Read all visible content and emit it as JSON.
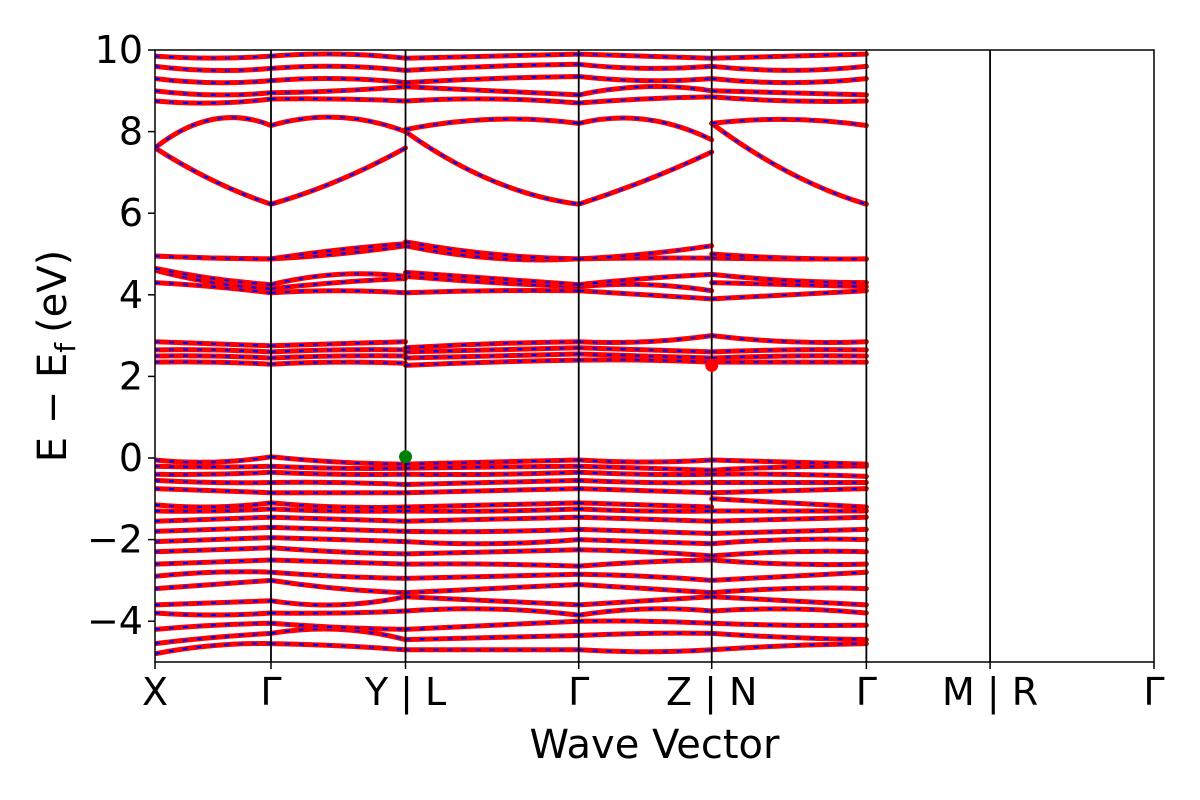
{
  "chart_data": {
    "type": "line",
    "xlabel": "Wave Vector",
    "ylabel": {
      "main": "E − E",
      "sub": "f",
      "unit": "(eV)"
    },
    "ylim": [
      -5,
      10
    ],
    "yticks": [
      -4,
      -2,
      0,
      2,
      4,
      6,
      8,
      10
    ],
    "ytick_labels": [
      "−4",
      "−2",
      "0",
      "2",
      "4",
      "6",
      "8",
      "10"
    ],
    "kpath": {
      "positions": [
        0,
        0.75,
        1.62,
        2.74,
        3.6,
        4.6,
        5.4,
        6.46
      ],
      "labels": [
        "X",
        "Γ",
        "Y | L",
        "Γ",
        "Z | N",
        "Γ",
        "M | R",
        "Γ"
      ],
      "xlim": [
        0,
        6.46
      ]
    },
    "line_colors": [
      "#ff0000",
      "#0000ff"
    ],
    "grid": false,
    "legend": "none",
    "markers": [
      {
        "name": "VBM",
        "x": 1.62,
        "y": 0.03,
        "color": "#008000"
      },
      {
        "name": "CBM",
        "x": 3.6,
        "y": 2.27,
        "color": "#ff0000"
      }
    ],
    "bands": [
      {
        "segments": [
          [
            -4.8,
            -4.6,
            -4.55
          ],
          [
            -4.55,
            -4.6,
            -4.7
          ],
          [
            -4.7,
            -4.7,
            -4.7
          ],
          [
            -4.7,
            -4.75,
            -4.7
          ],
          [
            -4.7,
            -4.6,
            -4.55
          ]
        ]
      },
      {
        "segments": [
          [
            -4.55,
            -4.4,
            -4.3
          ],
          [
            -4.3,
            -4.2,
            -4.45
          ],
          [
            -4.45,
            -4.4,
            -4.35
          ],
          [
            -4.35,
            -4.3,
            -4.3
          ],
          [
            -4.3,
            -4.4,
            -4.45
          ]
        ]
      },
      {
        "segments": [
          [
            -4.2,
            -4.1,
            -4.05
          ],
          [
            -4.05,
            -4.15,
            -4.2
          ],
          [
            -4.2,
            -4.1,
            -4.0
          ],
          [
            -4.0,
            -4.0,
            -4.05
          ],
          [
            -4.05,
            -4.1,
            -4.1
          ]
        ]
      },
      {
        "segments": [
          [
            -3.8,
            -3.85,
            -3.8
          ],
          [
            -3.8,
            -3.8,
            -3.75
          ],
          [
            -3.75,
            -3.7,
            -3.85
          ],
          [
            -3.85,
            -3.7,
            -3.75
          ],
          [
            -3.75,
            -3.7,
            -3.8
          ]
        ]
      },
      {
        "segments": [
          [
            -3.6,
            -3.55,
            -3.5
          ],
          [
            -3.5,
            -3.6,
            -3.4
          ],
          [
            -3.4,
            -3.5,
            -3.6
          ],
          [
            -3.6,
            -3.5,
            -3.4
          ],
          [
            -3.4,
            -3.5,
            -3.6
          ]
        ]
      },
      {
        "segments": [
          [
            -3.2,
            -3.1,
            -3.0
          ],
          [
            -3.0,
            -3.2,
            -3.3
          ],
          [
            -3.3,
            -3.2,
            -3.1
          ],
          [
            -3.1,
            -3.2,
            -3.3
          ],
          [
            -3.3,
            -3.2,
            -3.2
          ]
        ]
      },
      {
        "segments": [
          [
            -2.9,
            -2.8,
            -2.8
          ],
          [
            -2.8,
            -2.9,
            -2.95
          ],
          [
            -2.95,
            -2.9,
            -2.85
          ],
          [
            -2.85,
            -2.9,
            -3.0
          ],
          [
            -3.0,
            -2.9,
            -2.8
          ]
        ]
      },
      {
        "segments": [
          [
            -2.6,
            -2.55,
            -2.5
          ],
          [
            -2.5,
            -2.55,
            -2.6
          ],
          [
            -2.6,
            -2.6,
            -2.65
          ],
          [
            -2.65,
            -2.55,
            -2.5
          ],
          [
            -2.5,
            -2.6,
            -2.6
          ]
        ]
      },
      {
        "segments": [
          [
            -2.3,
            -2.25,
            -2.2
          ],
          [
            -2.2,
            -2.3,
            -2.35
          ],
          [
            -2.35,
            -2.3,
            -2.25
          ],
          [
            -2.25,
            -2.3,
            -2.4
          ],
          [
            -2.4,
            -2.3,
            -2.3
          ]
        ]
      },
      {
        "segments": [
          [
            -2.05,
            -2.0,
            -1.95
          ],
          [
            -1.95,
            -2.0,
            -2.05
          ],
          [
            -2.05,
            -2.1,
            -2.0
          ],
          [
            -2.0,
            -2.05,
            -2.1
          ],
          [
            -2.1,
            -2.0,
            -2.0
          ]
        ]
      },
      {
        "segments": [
          [
            -1.8,
            -1.75,
            -1.7
          ],
          [
            -1.7,
            -1.75,
            -1.8
          ],
          [
            -1.8,
            -1.8,
            -1.75
          ],
          [
            -1.75,
            -1.8,
            -1.85
          ],
          [
            -1.85,
            -1.8,
            -1.75
          ]
        ]
      },
      {
        "segments": [
          [
            -1.55,
            -1.5,
            -1.45
          ],
          [
            -1.45,
            -1.5,
            -1.55
          ],
          [
            -1.55,
            -1.5,
            -1.45
          ],
          [
            -1.45,
            -1.5,
            -1.55
          ],
          [
            -1.55,
            -1.5,
            -1.45
          ]
        ]
      },
      {
        "segments": [
          [
            -1.3,
            -1.3,
            -1.25
          ],
          [
            -1.25,
            -1.3,
            -1.3
          ],
          [
            -1.3,
            -1.3,
            -1.25
          ],
          [
            -1.25,
            -1.3,
            -1.3
          ],
          [
            -1.3,
            -1.3,
            -1.3
          ]
        ]
      },
      {
        "segments": [
          [
            -1.15,
            -1.2,
            -1.1
          ],
          [
            -1.1,
            -1.2,
            -1.2
          ],
          [
            -1.2,
            -1.15,
            -1.1
          ],
          [
            -1.1,
            -1.15,
            -1.2
          ],
          [
            -1.0,
            -1.1,
            -1.2
          ]
        ]
      },
      {
        "segments": [
          [
            -0.75,
            -0.8,
            -0.85
          ],
          [
            -0.85,
            -0.85,
            -0.85
          ],
          [
            -0.85,
            -0.8,
            -0.75
          ],
          [
            -0.75,
            -0.8,
            -0.85
          ],
          [
            -0.85,
            -0.8,
            -0.75
          ]
        ]
      },
      {
        "segments": [
          [
            -0.55,
            -0.6,
            -0.6
          ],
          [
            -0.6,
            -0.6,
            -0.65
          ],
          [
            -0.65,
            -0.6,
            -0.55
          ],
          [
            -0.55,
            -0.6,
            -0.6
          ],
          [
            -0.6,
            -0.6,
            -0.6
          ]
        ]
      },
      {
        "segments": [
          [
            -0.4,
            -0.4,
            -0.35
          ],
          [
            -0.35,
            -0.4,
            -0.4
          ],
          [
            -0.4,
            -0.4,
            -0.35
          ],
          [
            -0.35,
            -0.4,
            -0.4
          ],
          [
            -0.4,
            -0.4,
            -0.45
          ]
        ]
      },
      {
        "segments": [
          [
            -0.2,
            -0.22,
            -0.2
          ],
          [
            -0.2,
            -0.25,
            -0.25
          ],
          [
            -0.25,
            -0.22,
            -0.2
          ],
          [
            -0.2,
            -0.25,
            -0.3
          ],
          [
            -0.3,
            -0.22,
            -0.2
          ]
        ]
      },
      {
        "segments": [
          [
            -0.05,
            -0.1,
            0.03
          ],
          [
            0.03,
            -0.1,
            -0.15
          ],
          [
            -0.15,
            -0.1,
            -0.05
          ],
          [
            -0.05,
            -0.1,
            -0.05
          ],
          [
            -0.05,
            -0.1,
            -0.15
          ]
        ]
      },
      {
        "segments": [
          [
            2.35,
            2.35,
            2.3
          ],
          [
            2.3,
            2.35,
            2.32
          ],
          [
            2.27,
            2.35,
            2.4
          ],
          [
            2.4,
            2.4,
            2.35
          ],
          [
            2.35,
            2.35,
            2.35
          ]
        ]
      },
      {
        "segments": [
          [
            2.5,
            2.5,
            2.45
          ],
          [
            2.45,
            2.5,
            2.5
          ],
          [
            2.45,
            2.5,
            2.55
          ],
          [
            2.55,
            2.5,
            2.45
          ],
          [
            2.45,
            2.5,
            2.5
          ]
        ]
      },
      {
        "segments": [
          [
            2.65,
            2.65,
            2.6
          ],
          [
            2.6,
            2.65,
            2.65
          ],
          [
            2.6,
            2.65,
            2.7
          ],
          [
            2.7,
            2.65,
            2.6
          ],
          [
            2.6,
            2.65,
            2.65
          ]
        ]
      },
      {
        "segments": [
          [
            2.85,
            2.8,
            2.75
          ],
          [
            2.75,
            2.8,
            2.85
          ],
          [
            2.7,
            2.8,
            2.85
          ],
          [
            2.85,
            2.85,
            3.0
          ],
          [
            3.0,
            2.85,
            2.85
          ]
        ]
      },
      {
        "segments": [
          [
            4.3,
            4.2,
            4.05
          ],
          [
            4.05,
            4.1,
            4.05
          ],
          [
            4.05,
            4.1,
            4.1
          ],
          [
            4.1,
            4.0,
            3.9
          ],
          [
            3.9,
            4.0,
            4.1
          ]
        ]
      },
      {
        "segments": [
          [
            4.6,
            4.3,
            4.15
          ],
          [
            4.15,
            4.3,
            4.4
          ],
          [
            4.45,
            4.3,
            4.2
          ],
          [
            4.2,
            4.25,
            4.1
          ],
          [
            4.3,
            4.25,
            4.2
          ]
        ]
      },
      {
        "segments": [
          [
            4.65,
            4.4,
            4.25
          ],
          [
            4.25,
            4.5,
            4.45
          ],
          [
            4.55,
            4.4,
            4.25
          ],
          [
            4.25,
            4.4,
            4.5
          ],
          [
            4.5,
            4.35,
            4.3
          ]
        ]
      },
      {
        "segments": [
          [
            4.95,
            4.9,
            4.88
          ],
          [
            4.88,
            5.0,
            5.2
          ],
          [
            5.2,
            4.9,
            4.88
          ],
          [
            4.88,
            4.9,
            4.9
          ],
          [
            4.9,
            4.88,
            4.88
          ]
        ]
      },
      {
        "segments": [
          [
            4.95,
            4.9,
            4.88
          ],
          [
            4.88,
            5.1,
            5.25
          ],
          [
            5.3,
            5.0,
            4.88
          ],
          [
            4.88,
            5.0,
            5.2
          ],
          [
            5.0,
            4.9,
            4.88
          ]
        ]
      },
      {
        "segments": [
          [
            7.6,
            6.8,
            6.22
          ],
          [
            6.22,
            6.8,
            7.6
          ],
          [
            8.0,
            6.8,
            6.22
          ],
          [
            6.22,
            6.8,
            7.5
          ],
          [
            8.2,
            7.0,
            6.22
          ]
        ]
      },
      {
        "segments": [
          [
            7.6,
            8.3,
            8.15
          ],
          [
            8.15,
            8.35,
            8.0
          ],
          [
            8.05,
            8.3,
            8.2
          ],
          [
            8.2,
            8.3,
            7.8
          ],
          [
            8.2,
            8.3,
            8.15
          ]
        ]
      },
      {
        "segments": [
          [
            8.75,
            8.7,
            8.8
          ],
          [
            8.8,
            8.8,
            8.75
          ],
          [
            8.75,
            8.8,
            8.7
          ],
          [
            8.7,
            8.8,
            8.85
          ],
          [
            8.85,
            8.75,
            8.75
          ]
        ]
      },
      {
        "segments": [
          [
            9.0,
            8.9,
            8.95
          ],
          [
            8.95,
            9.0,
            9.1
          ],
          [
            9.1,
            9.0,
            8.9
          ],
          [
            8.9,
            9.1,
            9.0
          ],
          [
            9.0,
            8.95,
            8.9
          ]
        ]
      },
      {
        "segments": [
          [
            9.3,
            9.2,
            9.25
          ],
          [
            9.25,
            9.3,
            9.2
          ],
          [
            9.2,
            9.3,
            9.35
          ],
          [
            9.35,
            9.25,
            9.3
          ],
          [
            9.3,
            9.2,
            9.3
          ]
        ]
      },
      {
        "segments": [
          [
            9.6,
            9.5,
            9.55
          ],
          [
            9.55,
            9.6,
            9.5
          ],
          [
            9.5,
            9.6,
            9.65
          ],
          [
            9.65,
            9.55,
            9.6
          ],
          [
            9.6,
            9.5,
            9.6
          ]
        ]
      },
      {
        "segments": [
          [
            9.85,
            9.8,
            9.85
          ],
          [
            9.85,
            9.9,
            9.8
          ],
          [
            9.8,
            9.85,
            9.9
          ],
          [
            9.9,
            9.85,
            9.8
          ],
          [
            9.8,
            9.85,
            9.9
          ]
        ]
      }
    ]
  }
}
